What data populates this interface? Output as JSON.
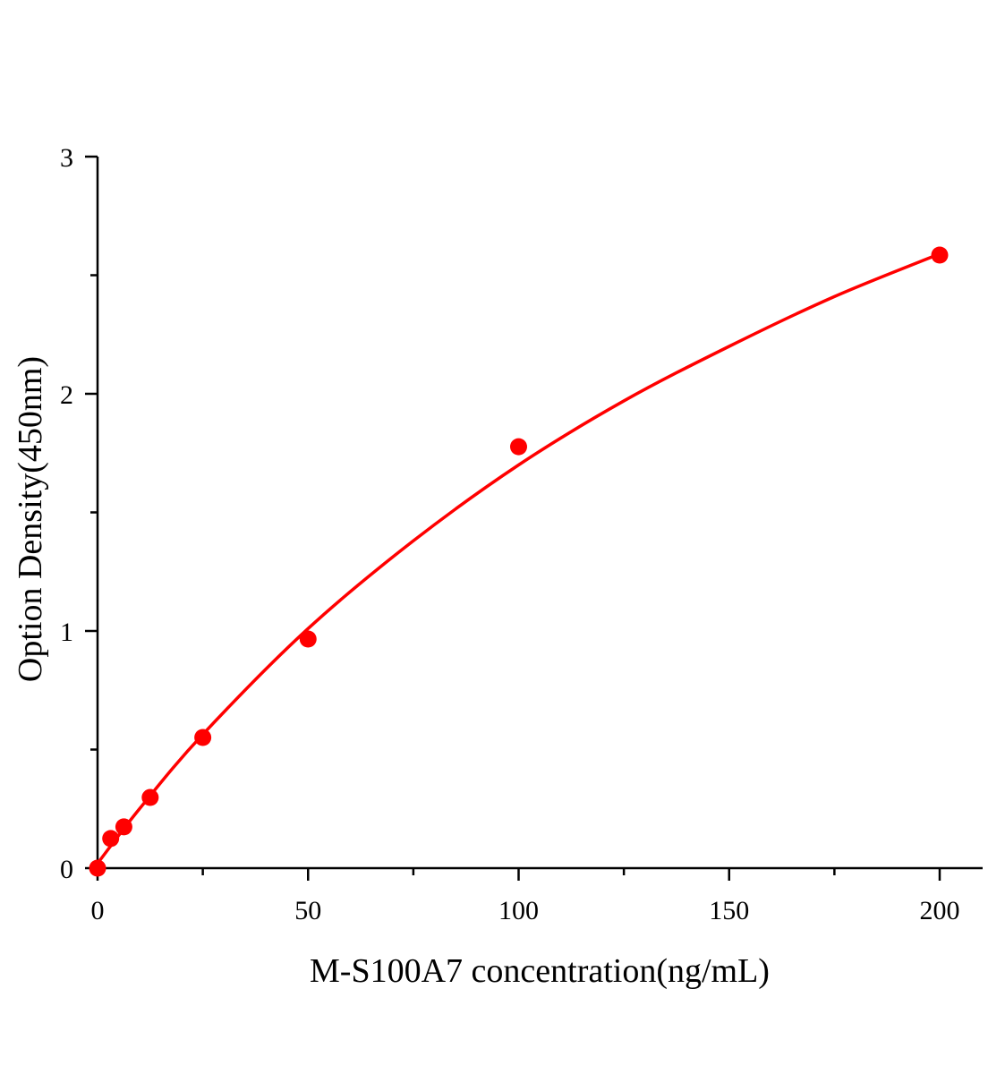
{
  "chart_data": {
    "type": "scatter",
    "title": "",
    "xlabel": "M-S100A7 concentration(ng/mL)",
    "ylabel": "Option Density(450nm)",
    "xlim": [
      0,
      210
    ],
    "ylim": [
      0,
      3
    ],
    "xticks": [
      "0",
      "50",
      "100",
      "150",
      "200"
    ],
    "yticks": [
      "0",
      "1",
      "2",
      "3"
    ],
    "grid": false,
    "legend": "none",
    "color": "#ff0000",
    "series": [
      {
        "x": [
          0,
          3.125,
          6.25,
          12.5,
          25,
          50,
          100,
          200
        ],
        "y": [
          0.0,
          0.125,
          0.174,
          0.298,
          0.551,
          0.966,
          1.777,
          2.585
        ]
      }
    ],
    "fit_curve": {
      "x": [
        0,
        10,
        25,
        50,
        75,
        100,
        125,
        150,
        175,
        200
      ],
      "y": [
        0.02,
        0.251,
        0.564,
        1.01,
        1.38,
        1.7,
        1.97,
        2.2,
        2.41,
        2.59
      ]
    }
  }
}
